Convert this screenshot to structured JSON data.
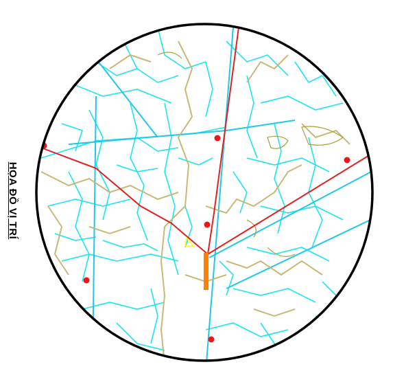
{
  "map": {
    "title": "HỌA ĐỒ VỊ TRÍ",
    "colors": {
      "minor_roads": "#19e6f0",
      "major_roads": "#1ec8e6",
      "boundaries": "#c8b878",
      "contours": "#a8a040",
      "main_road": "#e02020",
      "border": "#000000",
      "marker": "#e81818",
      "site": "#ff8000",
      "highlight_labels": "#ffff00"
    },
    "icons": [
      "red-dot-marker",
      "site-marker"
    ]
  }
}
